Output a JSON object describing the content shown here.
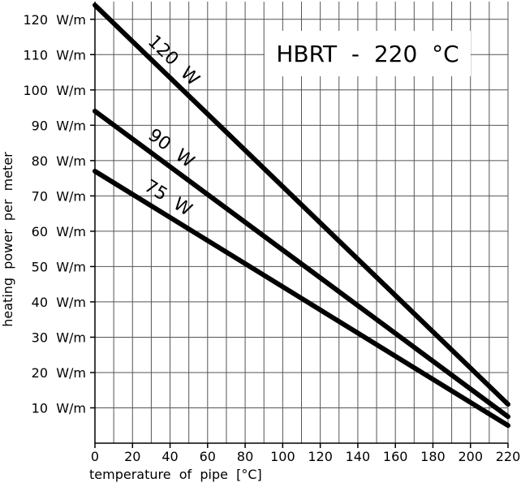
{
  "chart_data": {
    "type": "line",
    "title": "HBRT  -  220  °C",
    "xlabel": "temperature  of  pipe  [°C]",
    "ylabel": "heating  power  per  meter",
    "xlim": [
      0,
      220
    ],
    "ylim": [
      0,
      125
    ],
    "grid": true,
    "x_ticks": [
      0,
      20,
      40,
      60,
      80,
      100,
      120,
      140,
      160,
      180,
      200,
      220
    ],
    "x_tick_labels": [
      "0",
      "20",
      "40",
      "60",
      "80",
      "100",
      "120",
      "140",
      "160",
      "180",
      "200",
      "220"
    ],
    "y_ticks": [
      10,
      20,
      30,
      40,
      50,
      60,
      70,
      80,
      90,
      100,
      110,
      120
    ],
    "y_tick_labels": [
      "10  W/m",
      "20  W/m",
      "30  W/m",
      "40  W/m",
      "50  W/m",
      "60  W/m",
      "70  W/m",
      "80  W/m",
      "90  W/m",
      "100  W/m",
      "110  W/m",
      "120  W/m"
    ],
    "series": [
      {
        "name": "120  W",
        "x": [
          0,
          220
        ],
        "y": [
          124,
          11
        ]
      },
      {
        "name": "90  W",
        "x": [
          0,
          220
        ],
        "y": [
          94,
          7.5
        ]
      },
      {
        "name": "75  W",
        "x": [
          0,
          220
        ],
        "y": [
          77,
          5
        ]
      }
    ],
    "line_color": "#000000",
    "grid_color": "#555555"
  }
}
